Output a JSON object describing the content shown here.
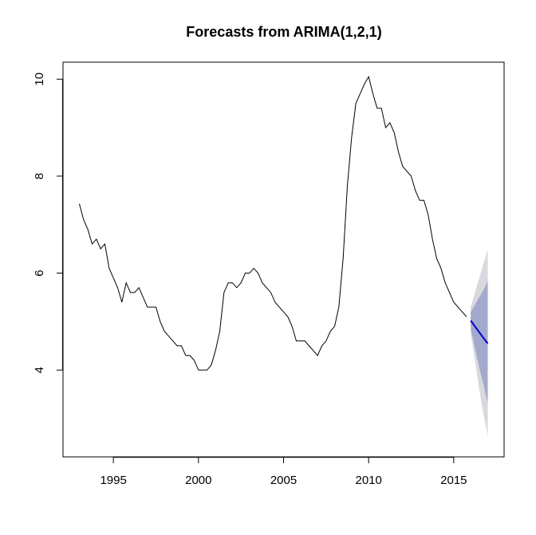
{
  "chart_data": {
    "type": "forecast",
    "title": "Forecasts from ARIMA(1,2,1)",
    "x": [
      1993,
      1993.25,
      1993.5,
      1993.75,
      1994,
      1994.25,
      1994.5,
      1994.75,
      1995,
      1995.25,
      1995.5,
      1995.75,
      1996,
      1996.25,
      1996.5,
      1996.75,
      1997,
      1997.25,
      1997.5,
      1997.75,
      1998,
      1998.25,
      1998.5,
      1998.75,
      1999,
      1999.25,
      1999.5,
      1999.75,
      2000,
      2000.25,
      2000.5,
      2000.75,
      2001,
      2001.25,
      2001.5,
      2001.75,
      2002,
      2002.25,
      2002.5,
      2002.75,
      2003,
      2003.25,
      2003.5,
      2003.75,
      2004,
      2004.25,
      2004.5,
      2004.75,
      2005,
      2005.25,
      2005.5,
      2005.75,
      2006,
      2006.25,
      2006.5,
      2006.75,
      2007,
      2007.25,
      2007.5,
      2007.75,
      2008,
      2008.25,
      2008.5,
      2008.75,
      2009,
      2009.25,
      2009.5,
      2009.75,
      2010,
      2010.25,
      2010.5,
      2010.75,
      2011,
      2011.25,
      2011.5,
      2011.75,
      2012,
      2012.25,
      2012.5,
      2012.75,
      2013,
      2013.25,
      2013.5,
      2013.75,
      2014,
      2014.25,
      2014.5,
      2014.75,
      2015,
      2015.25,
      2015.5,
      2015.75
    ],
    "values": [
      7.43,
      7.1,
      6.9,
      6.6,
      6.7,
      6.5,
      6.6,
      6.1,
      5.9,
      5.7,
      5.4,
      5.8,
      5.6,
      5.6,
      5.7,
      5.5,
      5.3,
      5.3,
      5.3,
      5.0,
      4.8,
      4.7,
      4.6,
      4.5,
      4.5,
      4.3,
      4.3,
      4.2,
      4.0,
      4.0,
      4.0,
      4.1,
      4.4,
      4.8,
      5.6,
      5.8,
      5.8,
      5.7,
      5.8,
      6.0,
      6.0,
      6.1,
      6.0,
      5.8,
      5.7,
      5.6,
      5.4,
      5.3,
      5.2,
      5.1,
      4.9,
      4.6,
      4.6,
      4.6,
      4.5,
      4.4,
      4.3,
      4.5,
      4.6,
      4.8,
      4.9,
      5.3,
      6.3,
      7.8,
      8.8,
      9.5,
      9.7,
      9.9,
      10.05,
      9.7,
      9.4,
      9.4,
      9.0,
      9.1,
      8.9,
      8.5,
      8.2,
      8.1,
      8.0,
      7.7,
      7.5,
      7.5,
      7.2,
      6.7,
      6.3,
      6.1,
      5.8,
      5.6,
      5.4,
      5.3,
      5.2,
      5.1
    ],
    "color": "#000000",
    "forecast_x": [
      2016,
      2016.25,
      2016.5,
      2016.75,
      2017
    ],
    "forecast": [
      5.02,
      4.9,
      4.78,
      4.66,
      4.55
    ],
    "forecast_color": "#0000cc",
    "lo80": [
      4.85,
      4.45,
      4.05,
      3.7,
      3.32
    ],
    "hi80": [
      5.2,
      5.35,
      5.5,
      5.65,
      5.84
    ],
    "band80_color": "#a3a9cc",
    "lo95": [
      4.75,
      4.2,
      3.6,
      3.1,
      2.63
    ],
    "hi95": [
      5.3,
      5.6,
      5.9,
      6.2,
      6.48
    ],
    "band95_color": "#d8d8de",
    "xlim": [
      1992.04,
      2017.96
    ],
    "xticks": [
      1995,
      2000,
      2005,
      2010,
      2015
    ],
    "ylim": [
      2.21,
      10.35
    ],
    "yticks": [
      4,
      6,
      8,
      10
    ]
  }
}
